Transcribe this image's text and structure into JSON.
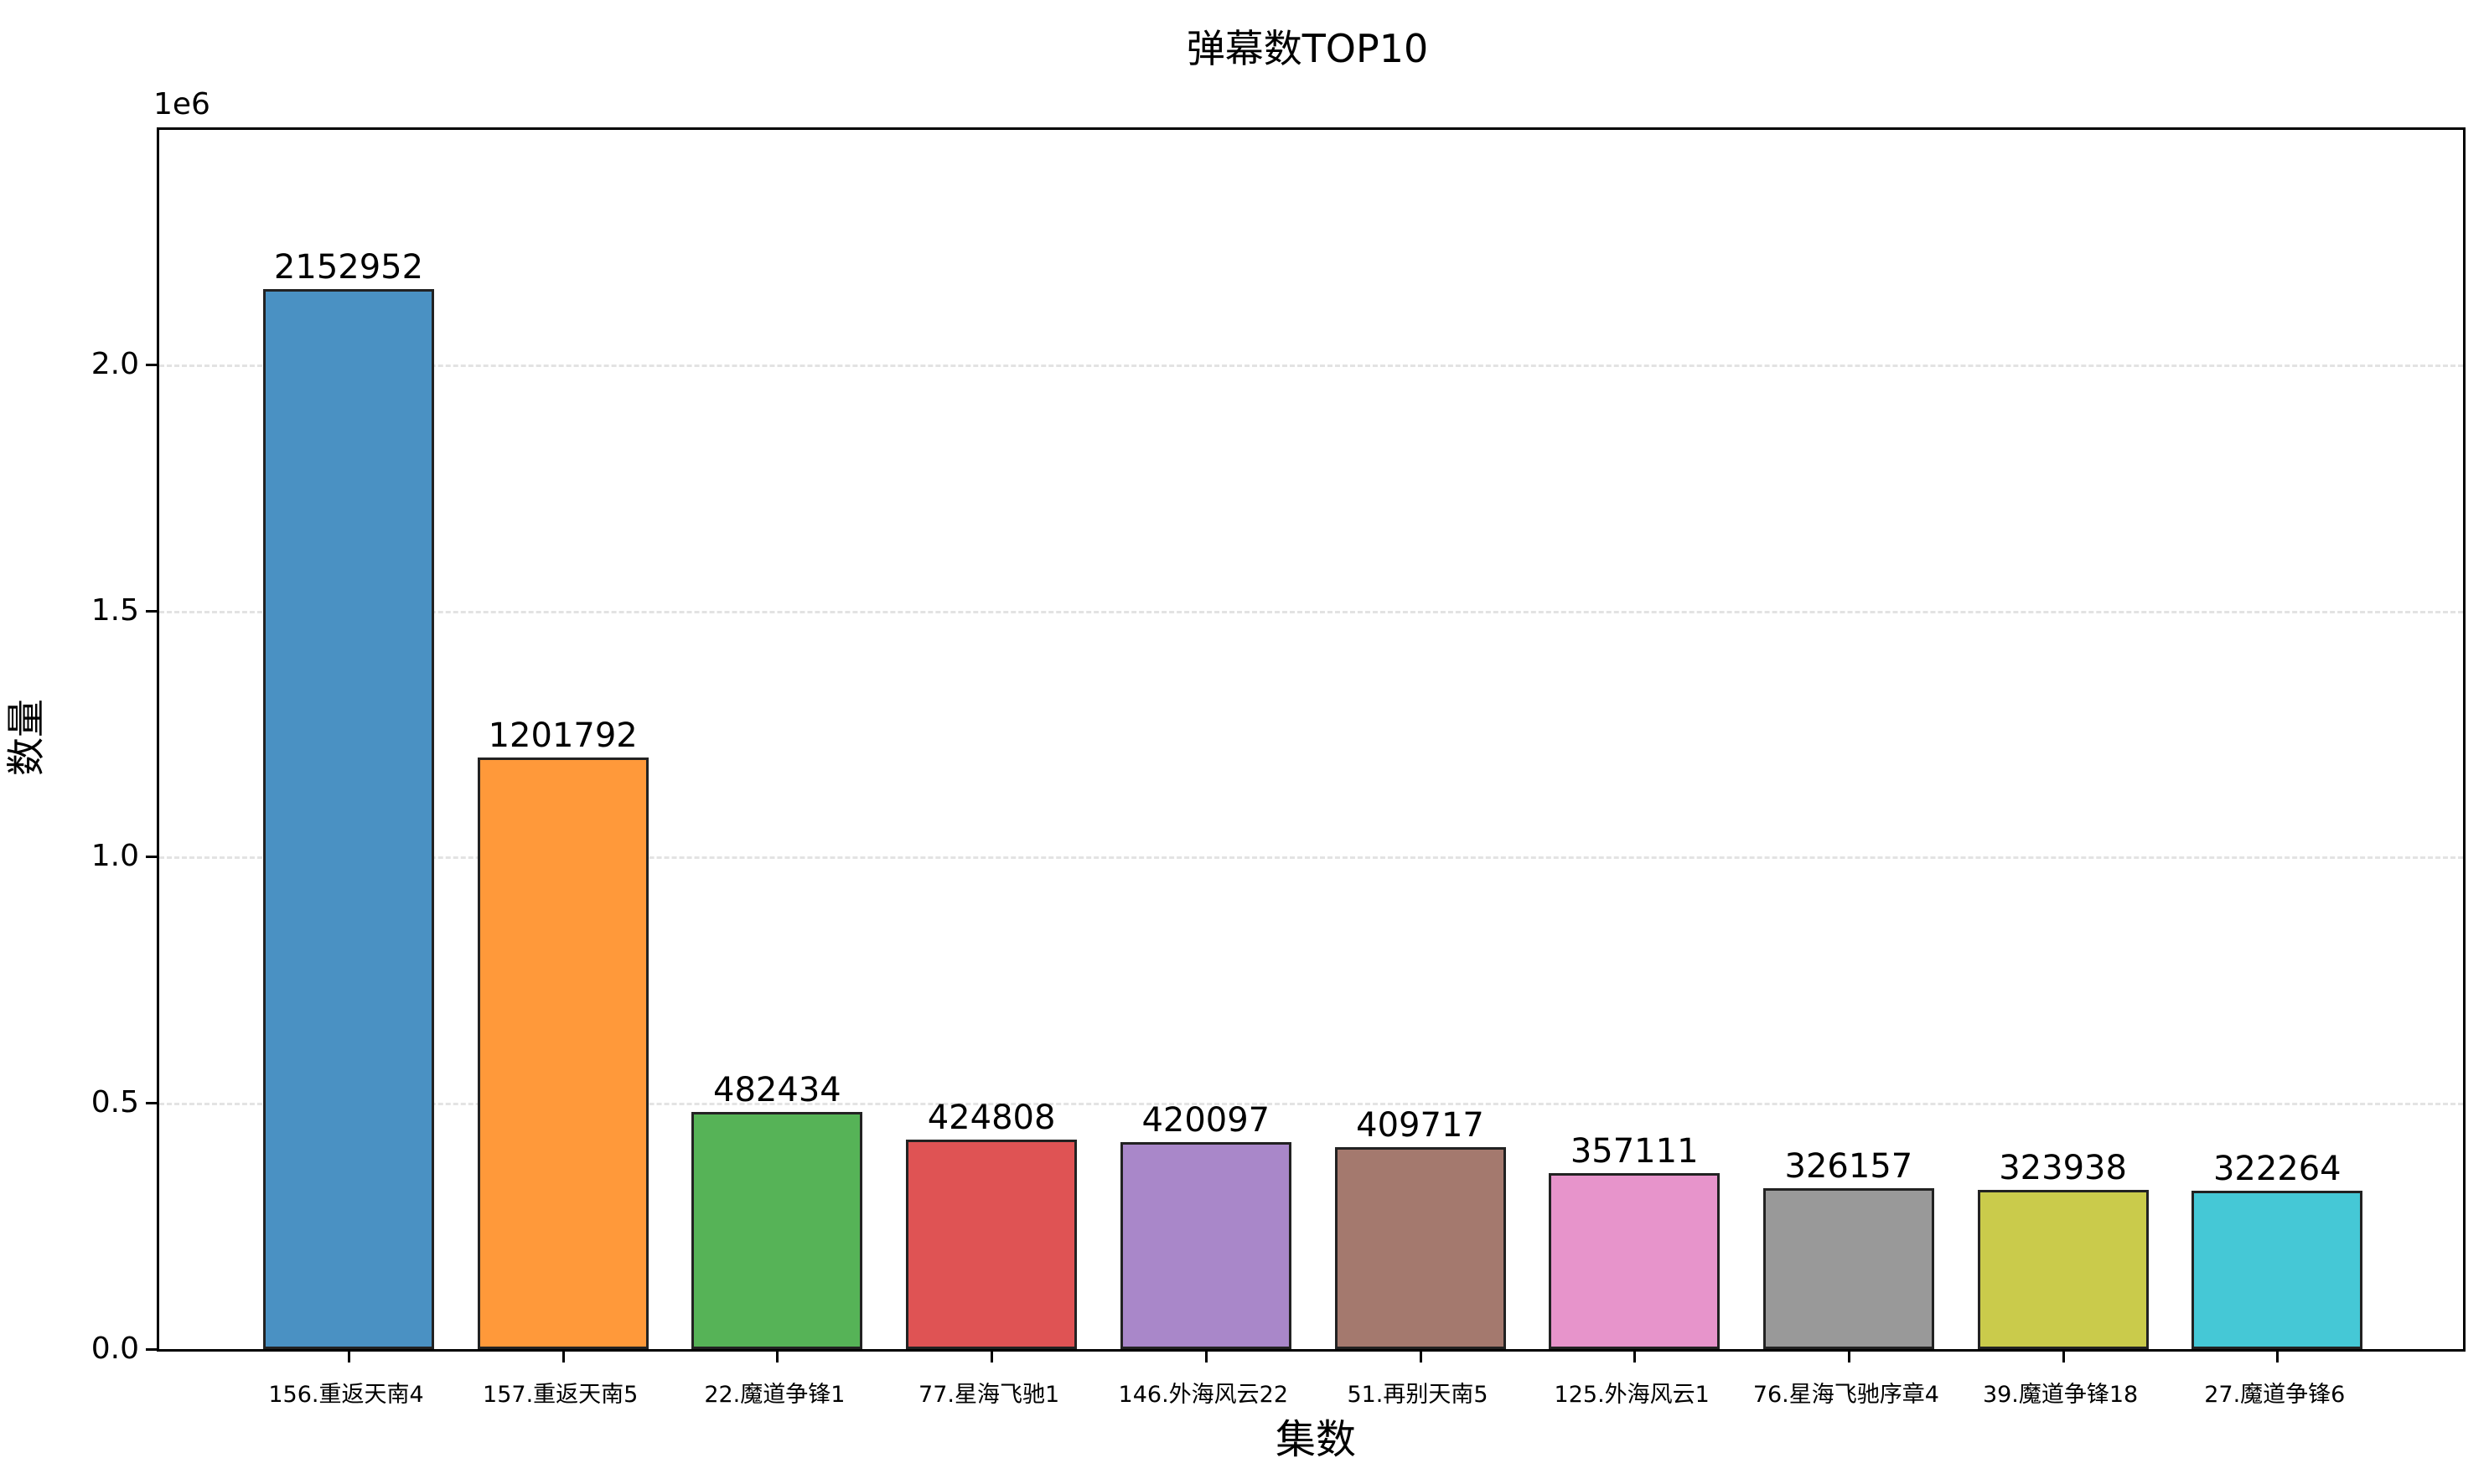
{
  "chart_data": {
    "type": "bar",
    "title": "弹幕数TOP10",
    "xlabel": "集数",
    "ylabel": "数量",
    "y_offset_label": "1e6",
    "ylim": [
      0,
      2476000
    ],
    "yticks": [
      0.0,
      0.5,
      1.0,
      1.5,
      2.0
    ],
    "ytick_labels": [
      "0.0",
      "0.5",
      "1.0",
      "1.5",
      "2.0"
    ],
    "grid": "y, dashed",
    "categories": [
      "156.重返天南4",
      "157.重返天南5",
      "22.魔道争锋1",
      "77.星海飞驰1",
      "146.外海风云22",
      "51.再别天南5",
      "125.外海风云1",
      "76.星海飞驰序章4",
      "39.魔道争锋18",
      "27.魔道争锋6"
    ],
    "values": [
      2152952,
      1201792,
      482434,
      424808,
      420097,
      409717,
      357111,
      326157,
      323938,
      322264
    ],
    "value_labels": [
      "2152952",
      "1201792",
      "482434",
      "424808",
      "420097",
      "409717",
      "357111",
      "326157",
      "323938",
      "322264"
    ],
    "colors": [
      "#4a91c3",
      "#ff993a",
      "#56b357",
      "#df5354",
      "#a987c9",
      "#a4796e",
      "#e794cb",
      "#999999",
      "#cacb4b",
      "#45c8d6"
    ]
  }
}
